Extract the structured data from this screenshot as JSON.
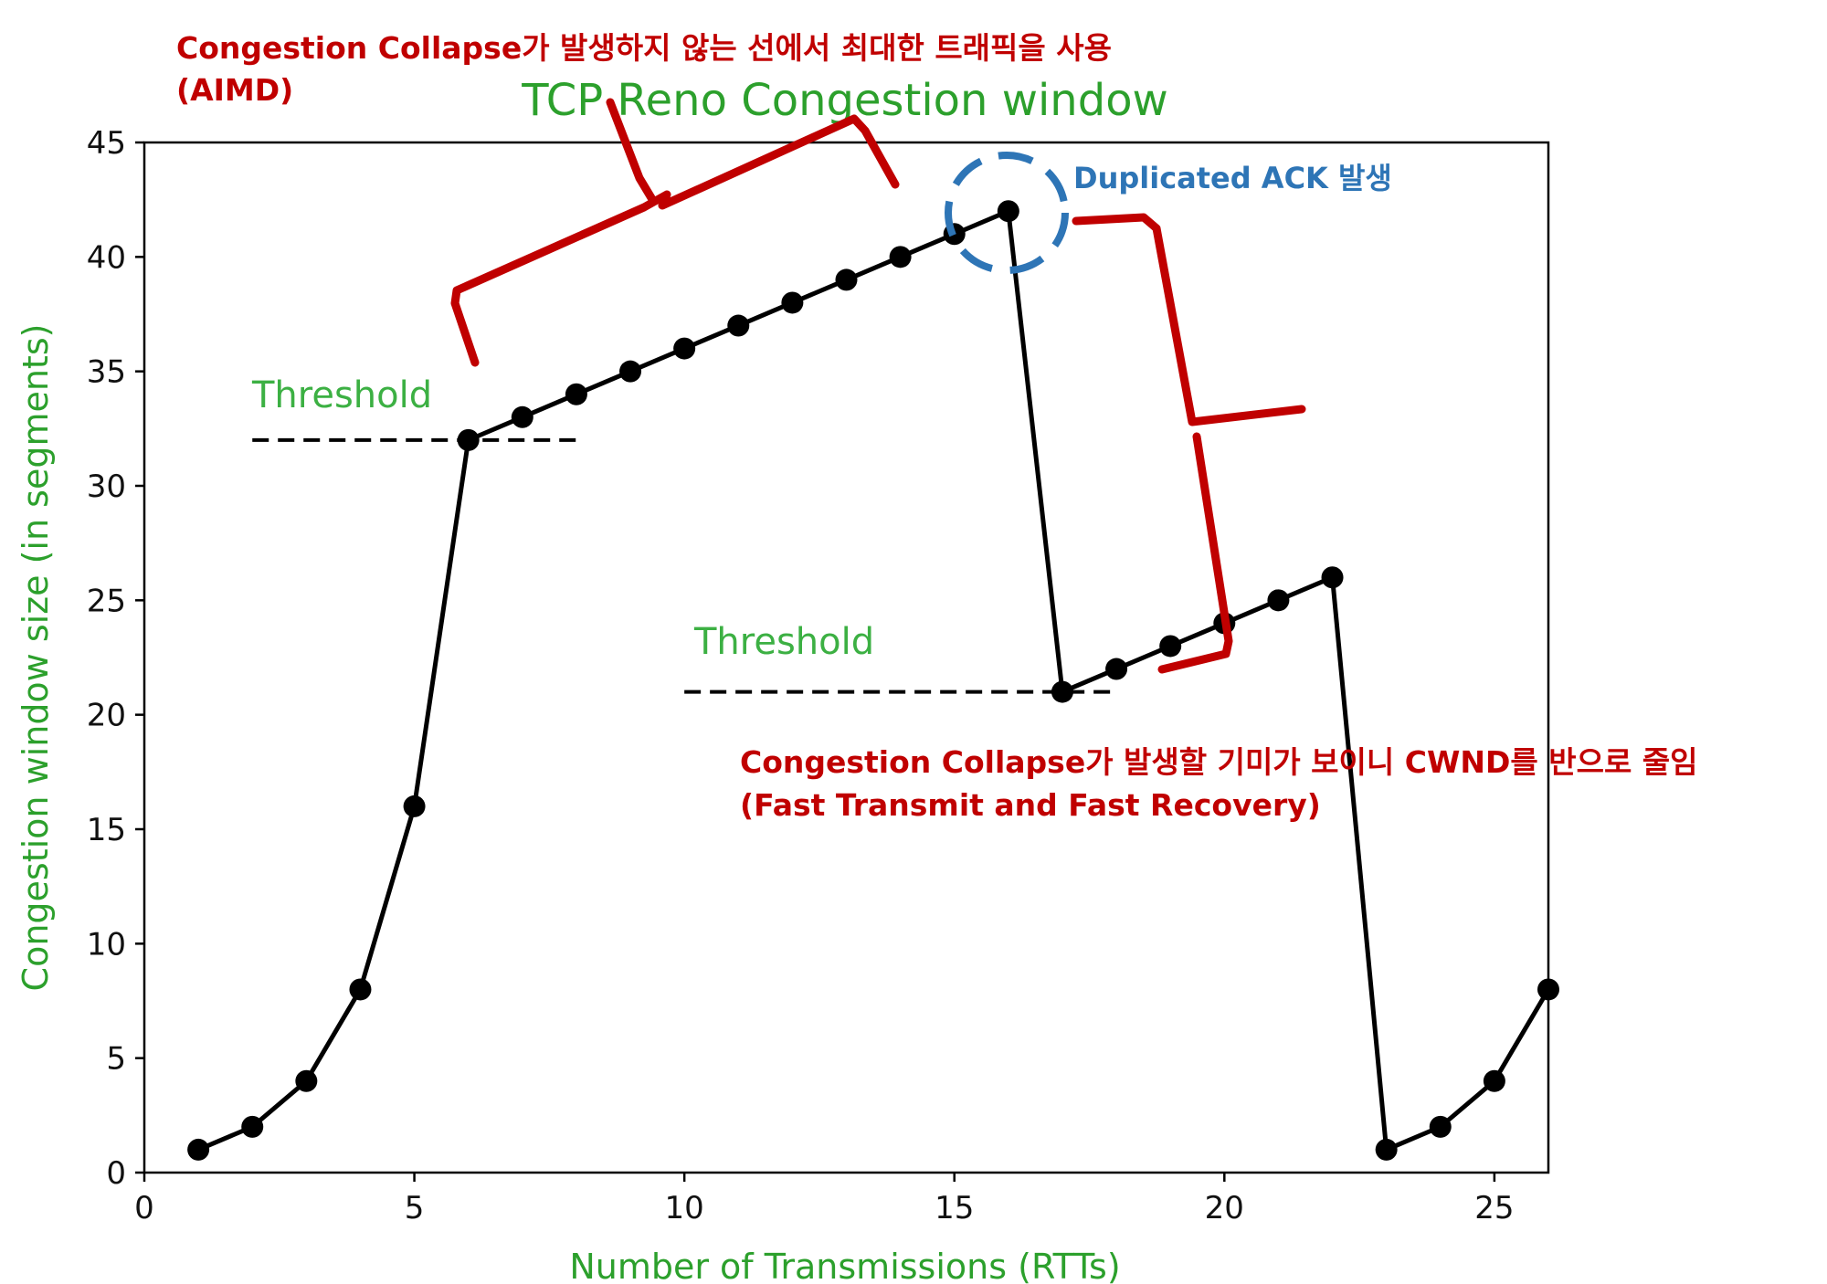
{
  "chart_data": {
    "type": "line",
    "title": "TCP Reno Congestion window",
    "xlabel": "Number of Transmissions (RTTs)",
    "ylabel": "Congestion window size (in segments)",
    "xlim": [
      0,
      26
    ],
    "ylim": [
      0,
      45
    ],
    "xticks": [
      0,
      5,
      10,
      15,
      20,
      25
    ],
    "yticks": [
      0,
      5,
      10,
      15,
      20,
      25,
      30,
      35,
      40,
      45
    ],
    "grid": false,
    "series": [
      {
        "color": "#000000",
        "x": [
          1,
          2,
          3,
          4,
          5,
          6,
          7,
          8,
          9,
          10,
          11,
          12,
          13,
          14,
          15,
          16,
          17,
          18,
          19,
          20,
          21,
          22,
          23,
          24,
          25,
          26
        ],
        "y": [
          1,
          2,
          4,
          8,
          16,
          32,
          33,
          34,
          35,
          36,
          37,
          38,
          39,
          40,
          41,
          42,
          21,
          22,
          23,
          24,
          25,
          26,
          1,
          2,
          4,
          8
        ]
      }
    ],
    "thresholds": [
      {
        "label": "Threshold",
        "y": 32,
        "x_range": [
          2,
          8
        ]
      },
      {
        "label": "Threshold",
        "y": 21,
        "x_range": [
          10,
          18
        ]
      }
    ],
    "annotations": {
      "aimd_line1": "Congestion Collapse가 발생하지 않는 선에서 최대한 트래픽을 사용",
      "aimd_line2": "(AIMD)",
      "dup_ack": "Duplicated ACK 발생",
      "fast_line1": "Congestion Collapse가 발생할 기미가 보이니 CWND를 반으로 줄임",
      "fast_line2": "(Fast Transmit and Fast Recovery)"
    },
    "colors": {
      "line": "#000000",
      "axis_text": "#2ca02c",
      "threshold_text": "#3cb043",
      "annotation_red": "#c00000",
      "annotation_blue": "#2e75b6"
    }
  }
}
